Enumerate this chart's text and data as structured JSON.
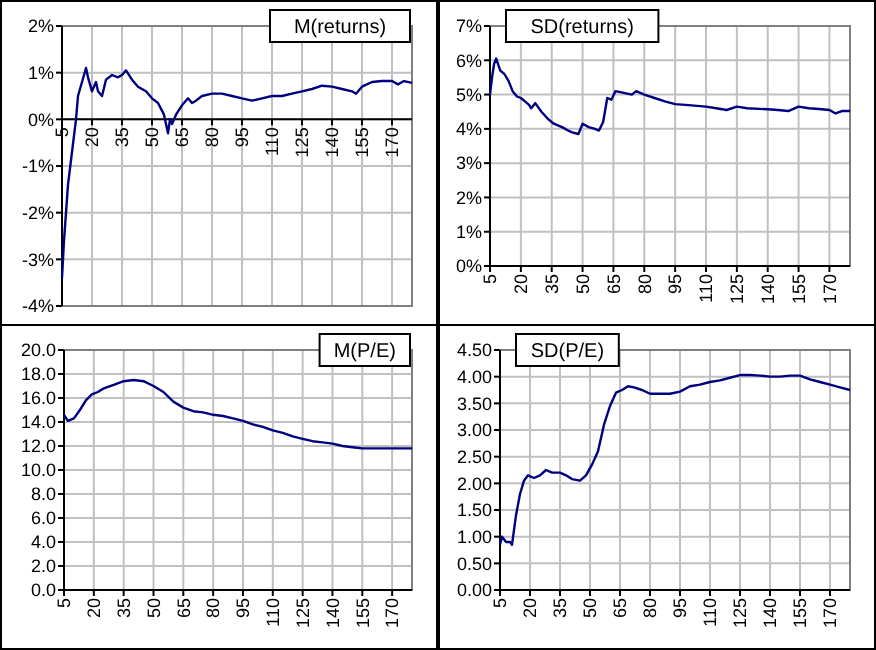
{
  "chart_data": [
    {
      "type": "line",
      "title": "M(returns)",
      "x": [
        5,
        6,
        8,
        10,
        12,
        13,
        15,
        17,
        18,
        20,
        22,
        23,
        25,
        27,
        30,
        33,
        35,
        37,
        40,
        43,
        47,
        50,
        53,
        56,
        58,
        59,
        60,
        62,
        65,
        68,
        70,
        72,
        75,
        80,
        85,
        90,
        95,
        100,
        105,
        110,
        115,
        120,
        125,
        130,
        135,
        140,
        145,
        150,
        152,
        155,
        160,
        165,
        170,
        173,
        176,
        180
      ],
      "series": [
        {
          "color": "#000080",
          "values": [
            -3.4,
            -2.6,
            -1.4,
            -0.7,
            0,
            0.5,
            0.8,
            1.1,
            0.9,
            0.6,
            0.8,
            0.6,
            0.5,
            0.85,
            0.95,
            0.9,
            0.95,
            1.05,
            0.85,
            0.7,
            0.6,
            0.45,
            0.35,
            0.1,
            -0.3,
            0,
            -0.1,
            0.1,
            0.3,
            0.45,
            0.35,
            0.4,
            0.5,
            0.55,
            0.55,
            0.5,
            0.45,
            0.4,
            0.45,
            0.5,
            0.5,
            0.55,
            0.6,
            0.65,
            0.72,
            0.7,
            0.65,
            0.6,
            0.55,
            0.7,
            0.8,
            0.82,
            0.82,
            0.75,
            0.82,
            0.78
          ]
        }
      ],
      "xlim": [
        5,
        180
      ],
      "xticks": [
        5,
        20,
        35,
        50,
        65,
        80,
        95,
        110,
        125,
        140,
        155,
        170
      ],
      "ylim": [
        -4,
        2
      ],
      "yticks": [
        {
          "value": -4,
          "label": "-4%"
        },
        {
          "value": -3,
          "label": "-3%"
        },
        {
          "value": -2,
          "label": "-2%"
        },
        {
          "value": -1,
          "label": "-1%"
        },
        {
          "value": 0,
          "label": "0%"
        },
        {
          "value": 1,
          "label": "1%"
        },
        {
          "value": 2,
          "label": "2%"
        }
      ],
      "grid": true,
      "marker": "none",
      "line_style": "solid"
    },
    {
      "type": "line",
      "title": "SD(returns)",
      "x": [
        5,
        6,
        7,
        8,
        10,
        12,
        14,
        16,
        18,
        20,
        22,
        24,
        25,
        27,
        30,
        33,
        36,
        40,
        43,
        45,
        48,
        50,
        53,
        56,
        58,
        60,
        62,
        64,
        66,
        70,
        74,
        76,
        80,
        85,
        90,
        95,
        100,
        110,
        115,
        120,
        125,
        130,
        140,
        145,
        150,
        155,
        160,
        165,
        170,
        173,
        176,
        180
      ],
      "series": [
        {
          "color": "#000080",
          "values": [
            5.0,
            5.5,
            5.9,
            6.05,
            5.7,
            5.6,
            5.4,
            5.1,
            4.95,
            4.9,
            4.8,
            4.7,
            4.6,
            4.75,
            4.5,
            4.3,
            4.15,
            4.05,
            3.95,
            3.9,
            3.85,
            4.15,
            4.05,
            4.0,
            3.95,
            4.2,
            4.9,
            4.85,
            5.1,
            5.05,
            5.0,
            5.1,
            5.0,
            4.9,
            4.8,
            4.72,
            4.7,
            4.65,
            4.6,
            4.55,
            4.65,
            4.6,
            4.57,
            4.55,
            4.52,
            4.65,
            4.6,
            4.58,
            4.55,
            4.45,
            4.52,
            4.52
          ]
        }
      ],
      "xlim": [
        5,
        180
      ],
      "xticks": [
        5,
        20,
        35,
        50,
        65,
        80,
        95,
        110,
        125,
        140,
        155,
        170
      ],
      "ylim": [
        0,
        7
      ],
      "yticks": [
        {
          "value": 0,
          "label": "0%"
        },
        {
          "value": 1,
          "label": "1%"
        },
        {
          "value": 2,
          "label": "2%"
        },
        {
          "value": 3,
          "label": "3%"
        },
        {
          "value": 4,
          "label": "4%"
        },
        {
          "value": 5,
          "label": "5%"
        },
        {
          "value": 6,
          "label": "6%"
        },
        {
          "value": 7,
          "label": "7%"
        }
      ],
      "grid": true,
      "marker": "none",
      "line_style": "solid"
    },
    {
      "type": "line",
      "title": "M(P/E)",
      "x": [
        5,
        7,
        10,
        13,
        16,
        19,
        22,
        25,
        30,
        35,
        40,
        45,
        50,
        55,
        60,
        65,
        70,
        75,
        80,
        85,
        90,
        95,
        100,
        105,
        110,
        115,
        120,
        125,
        130,
        135,
        140,
        145,
        150,
        155,
        160,
        170,
        180
      ],
      "series": [
        {
          "color": "#000080",
          "values": [
            14.6,
            14.1,
            14.3,
            15.0,
            15.8,
            16.3,
            16.5,
            16.8,
            17.1,
            17.4,
            17.5,
            17.4,
            17.0,
            16.5,
            15.7,
            15.2,
            14.9,
            14.8,
            14.6,
            14.5,
            14.3,
            14.1,
            13.8,
            13.6,
            13.3,
            13.1,
            12.8,
            12.6,
            12.4,
            12.3,
            12.2,
            12.0,
            11.9,
            11.8,
            11.8,
            11.8,
            11.8
          ]
        }
      ],
      "xlim": [
        5,
        180
      ],
      "xticks": [
        5,
        20,
        35,
        50,
        65,
        80,
        95,
        110,
        125,
        140,
        155,
        170
      ],
      "ylim": [
        0,
        20
      ],
      "yticks": [
        {
          "value": 0,
          "label": "0.0"
        },
        {
          "value": 2,
          "label": "2.0"
        },
        {
          "value": 4,
          "label": "4.0"
        },
        {
          "value": 6,
          "label": "6.0"
        },
        {
          "value": 8,
          "label": "8.0"
        },
        {
          "value": 10,
          "label": "10.0"
        },
        {
          "value": 12,
          "label": "12.0"
        },
        {
          "value": 14,
          "label": "14.0"
        },
        {
          "value": 16,
          "label": "16.0"
        },
        {
          "value": 18,
          "label": "18.0"
        },
        {
          "value": 20,
          "label": "20.0"
        }
      ],
      "grid": true,
      "marker": "none",
      "line_style": "solid"
    },
    {
      "type": "line",
      "title": "SD(P/E)",
      "x": [
        5,
        6,
        8,
        10,
        11,
        13,
        15,
        17,
        19,
        22,
        25,
        28,
        31,
        35,
        38,
        41,
        45,
        48,
        51,
        54,
        57,
        60,
        63,
        66,
        69,
        72,
        76,
        80,
        85,
        90,
        95,
        100,
        105,
        110,
        115,
        120,
        125,
        130,
        135,
        140,
        145,
        150,
        155,
        160,
        165,
        170,
        175,
        180
      ],
      "series": [
        {
          "color": "#000080",
          "values": [
            0.85,
            1.0,
            0.9,
            0.9,
            0.85,
            1.4,
            1.8,
            2.05,
            2.15,
            2.1,
            2.15,
            2.25,
            2.2,
            2.2,
            2.15,
            2.08,
            2.05,
            2.15,
            2.35,
            2.6,
            3.1,
            3.45,
            3.7,
            3.75,
            3.82,
            3.8,
            3.75,
            3.68,
            3.68,
            3.68,
            3.72,
            3.82,
            3.85,
            3.9,
            3.93,
            3.98,
            4.03,
            4.03,
            4.02,
            4.0,
            4.0,
            4.02,
            4.02,
            3.95,
            3.9,
            3.85,
            3.8,
            3.75
          ]
        }
      ],
      "xlim": [
        5,
        180
      ],
      "xticks": [
        5,
        20,
        35,
        50,
        65,
        80,
        95,
        110,
        125,
        140,
        155,
        170
      ],
      "ylim": [
        0,
        4.5
      ],
      "yticks": [
        {
          "value": 0,
          "label": "0.00"
        },
        {
          "value": 0.5,
          "label": "0.50"
        },
        {
          "value": 1,
          "label": "1.00"
        },
        {
          "value": 1.5,
          "label": "1.50"
        },
        {
          "value": 2,
          "label": "2.00"
        },
        {
          "value": 2.5,
          "label": "2.50"
        },
        {
          "value": 3,
          "label": "3.00"
        },
        {
          "value": 3.5,
          "label": "3.50"
        },
        {
          "value": 4,
          "label": "4.00"
        },
        {
          "value": 4.5,
          "label": "4.50"
        }
      ],
      "grid": true,
      "marker": "none",
      "line_style": "solid"
    }
  ]
}
